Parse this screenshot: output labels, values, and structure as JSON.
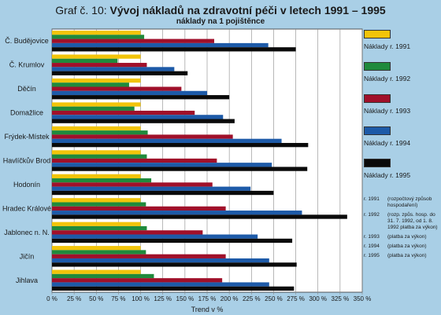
{
  "chart_data": {
    "type": "bar",
    "orientation": "horizontal",
    "title_prefix": "Graf č. 10:",
    "title": "Vývoj nákladů na zdravotní péči v letech 1991 – 1995",
    "subtitle": "náklady na 1 pojištěnce",
    "xlabel": "Trend v %",
    "ylabel": "",
    "xlim": [
      0,
      350
    ],
    "xticks": [
      "0 %",
      "25 %",
      "50 %",
      "75 %",
      "100 %",
      "125 %",
      "150 %",
      "175 %",
      "200 %",
      "225 %",
      "250 %",
      "275 %",
      "300 %",
      "325 %",
      "350 %"
    ],
    "grid": true,
    "legend_position": "right",
    "categories": [
      "Č. Budějovice",
      "Č. Krumlov",
      "Děčín",
      "Domažlice",
      "Frýdek-Místek",
      "Havlíčkův Brod",
      "Hodonín",
      "Hradec Králové",
      "Jablonec n. N.",
      "Jičín",
      "Jihlava"
    ],
    "series": [
      {
        "name": "Náklady r. 1991",
        "color": "#f2c40a",
        "values": [
          100,
          100,
          100,
          100,
          100,
          100,
          100,
          100,
          100,
          100,
          100
        ]
      },
      {
        "name": "Náklady r. 1992",
        "color": "#1f8a3c",
        "values": [
          104,
          74,
          87,
          93,
          108,
          107,
          112,
          106,
          107,
          106,
          115
        ]
      },
      {
        "name": "Náklady r. 1993",
        "color": "#a0102a",
        "values": [
          183,
          107,
          146,
          161,
          204,
          186,
          181,
          196,
          170,
          196,
          192
        ]
      },
      {
        "name": "Náklady r. 1994",
        "color": "#1d5aa8",
        "values": [
          244,
          138,
          175,
          193,
          259,
          248,
          224,
          282,
          232,
          245,
          245
        ]
      },
      {
        "name": "Náklady r. 1995",
        "color": "#0a0a0a",
        "values": [
          275,
          153,
          200,
          206,
          289,
          288,
          250,
          333,
          271,
          276,
          273
        ]
      }
    ]
  },
  "notes": [
    {
      "key": "r. 1991",
      "text": "(rozpočtový způsob hospodaření)"
    },
    {
      "key": "r. 1992",
      "text": "(rozp. způs. hosp. do 31. 7. 1992, od 1. 8. 1992 platba za výkon)"
    },
    {
      "key": "r. 1993",
      "text": "(platba za výkon)"
    },
    {
      "key": "r. 1994",
      "text": "(platba za výkon)"
    },
    {
      "key": "r. 1995",
      "text": "(platba za výkon)"
    }
  ]
}
